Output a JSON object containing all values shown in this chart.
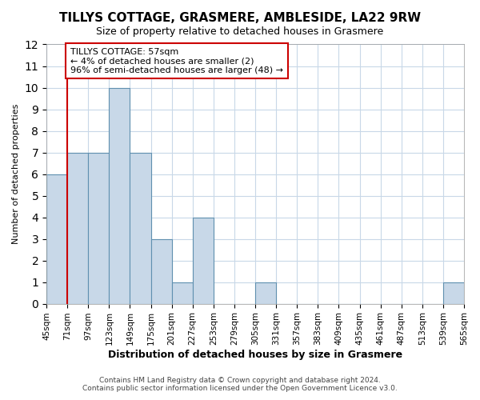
{
  "title": "TILLYS COTTAGE, GRASMERE, AMBLESIDE, LA22 9RW",
  "subtitle": "Size of property relative to detached houses in Grasmere",
  "xlabel": "Distribution of detached houses by size in Grasmere",
  "ylabel": "Number of detached properties",
  "bin_labels": [
    "45sqm",
    "71sqm",
    "97sqm",
    "123sqm",
    "149sqm",
    "175sqm",
    "201sqm",
    "227sqm",
    "253sqm",
    "279sqm",
    "305sqm",
    "331sqm",
    "357sqm",
    "383sqm",
    "409sqm",
    "435sqm",
    "461sqm",
    "487sqm",
    "513sqm",
    "539sqm",
    "565sqm"
  ],
  "bin_values": [
    6,
    7,
    7,
    10,
    7,
    3,
    1,
    4,
    0,
    0,
    1,
    0,
    0,
    0,
    0,
    0,
    0,
    0,
    0,
    1
  ],
  "bar_color": "#c8d8e8",
  "bar_edge_color": "#6090b0",
  "red_line_x": 1.0,
  "ylim": [
    0,
    12
  ],
  "yticks": [
    0,
    1,
    2,
    3,
    4,
    5,
    6,
    7,
    8,
    9,
    10,
    11,
    12
  ],
  "annotation_title": "TILLYS COTTAGE: 57sqm",
  "annotation_line1": "← 4% of detached houses are smaller (2)",
  "annotation_line2": "96% of semi-detached houses are larger (48) →",
  "annotation_box_color": "#ffffff",
  "annotation_box_edge": "#cc0000",
  "red_line_color": "#cc0000",
  "footer_line1": "Contains HM Land Registry data © Crown copyright and database right 2024.",
  "footer_line2": "Contains public sector information licensed under the Open Government Licence v3.0.",
  "background_color": "#ffffff",
  "grid_color": "#c8d8e8"
}
